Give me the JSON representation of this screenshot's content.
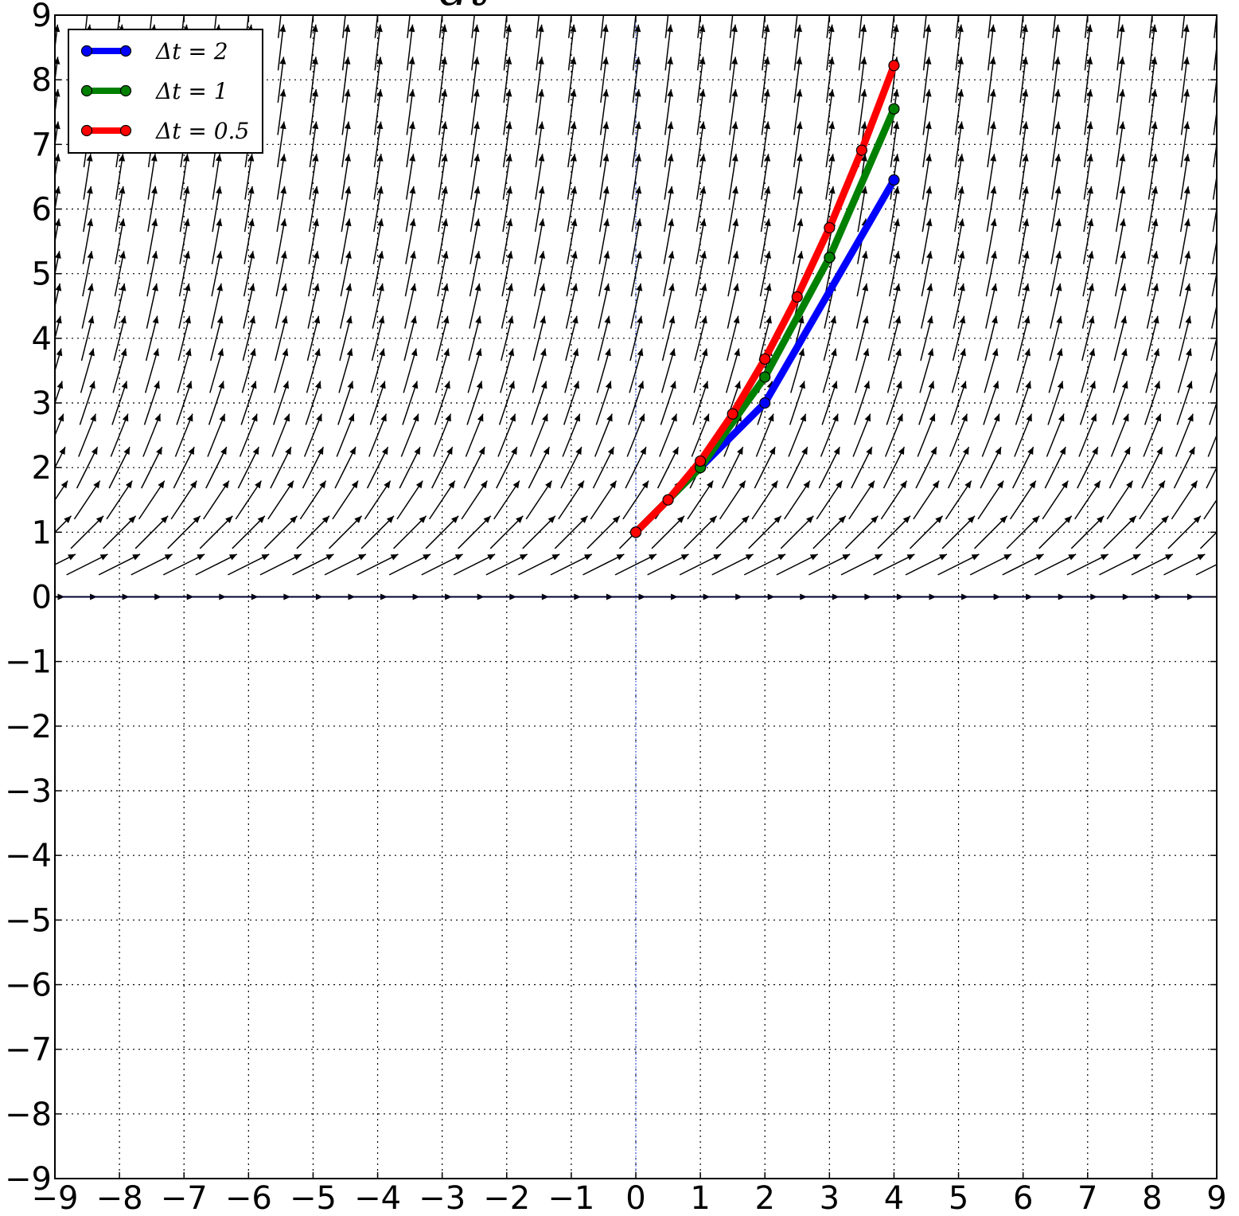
{
  "chart_data": {
    "type": "line",
    "title": "dt",
    "xlabel": "",
    "ylabel": "",
    "xlim": [
      -9,
      9
    ],
    "ylim": [
      -9,
      9
    ],
    "xticks": [
      "−9",
      "−8",
      "−7",
      "−6",
      "−5",
      "−4",
      "−3",
      "−2",
      "−1",
      "0",
      "1",
      "2",
      "3",
      "4",
      "5",
      "6",
      "7",
      "8",
      "9"
    ],
    "yticks": [
      "−9",
      "−8",
      "−7",
      "−6",
      "−5",
      "−4",
      "−3",
      "−2",
      "−1",
      "0",
      "1",
      "2",
      "3",
      "4",
      "5",
      "6",
      "7",
      "8",
      "9"
    ],
    "grid": true,
    "legend_position": "top-left",
    "direction_field": {
      "slope": "y",
      "x_range": [
        -9,
        9
      ],
      "y_range": [
        0,
        9
      ],
      "step": 0.5
    },
    "series": [
      {
        "name": "Δt = 2",
        "color": "#0000ff",
        "x": [
          0,
          1,
          2,
          4
        ],
        "y": [
          1,
          2,
          3,
          6.45
        ]
      },
      {
        "name": "Δt = 1",
        "color": "#008000",
        "x": [
          0,
          1,
          2,
          3,
          4
        ],
        "y": [
          1,
          2,
          3.4,
          5.25,
          7.55
        ]
      },
      {
        "name": "Δt = 0.5",
        "color": "#ff0000",
        "x": [
          0,
          0.5,
          1,
          1.5,
          2,
          2.5,
          3,
          3.5,
          4
        ],
        "y": [
          1,
          1.5,
          2.1,
          2.83,
          3.68,
          4.64,
          5.71,
          6.91,
          8.22
        ]
      }
    ]
  }
}
